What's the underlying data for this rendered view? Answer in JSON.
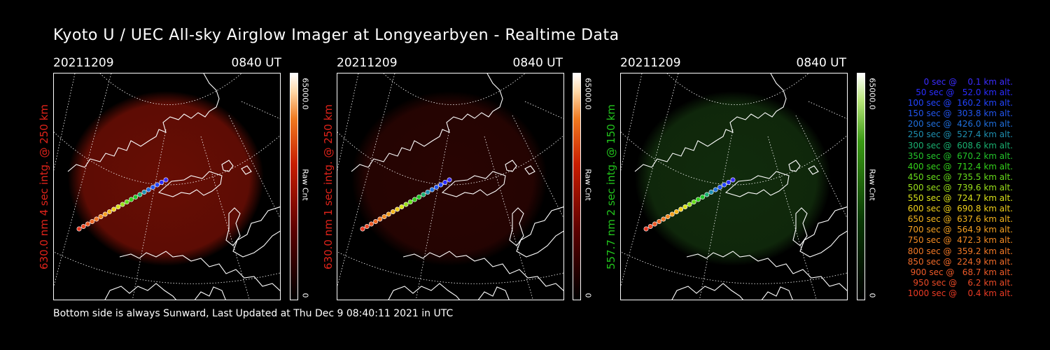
{
  "title": "Kyoto U / UEC All-sky Airglow Imager at Longyearbyen - Realtime Data",
  "footer": "Bottom side is always Sunward, Last Updated at Thu Dec  9 08:40:11 2021 in UTC",
  "panels": [
    {
      "date": "20211209",
      "time": "0840 UT",
      "label": "630.0 nm 4 sec intg. @ 250 km",
      "label_color": "#e0231a",
      "cbar_max": "65000.0",
      "cbar_unit": "Raw Cnt",
      "cbar_min": "0",
      "glow": "#8a1206",
      "glow_opacity": 0.75,
      "cmap": "red"
    },
    {
      "date": "20211209",
      "time": "0840 UT",
      "label": "630.0 nm 1 sec intg. @ 250 km",
      "label_color": "#e0231a",
      "cbar_max": "65000.0",
      "cbar_unit": "Raw Cnt",
      "cbar_min": "0",
      "glow": "#3a0603",
      "glow_opacity": 0.7,
      "cmap": "red"
    },
    {
      "date": "20211209",
      "time": "0840 UT",
      "label": "557.7 nm 2 sec intg. @ 150 km",
      "label_color": "#22c41c",
      "cbar_max": "65000.0",
      "cbar_unit": "Raw Cnt",
      "cbar_min": "0",
      "glow": "#15360f",
      "glow_opacity": 0.8,
      "cmap": "green"
    }
  ],
  "altitude_table": [
    {
      "text": "   0 sec @    0.1 km alt.",
      "color": "#3b2cff"
    },
    {
      "text": "  50 sec @   52.0 km alt.",
      "color": "#2a2cff"
    },
    {
      "text": " 100 sec @  160.2 km alt.",
      "color": "#2244ff"
    },
    {
      "text": " 150 sec @  303.8 km alt.",
      "color": "#2255ee"
    },
    {
      "text": " 200 sec @  426.0 km alt.",
      "color": "#1f6fdd"
    },
    {
      "text": " 250 sec @  527.4 km alt.",
      "color": "#1e8fb0"
    },
    {
      "text": " 300 sec @  608.6 km alt.",
      "color": "#19b070"
    },
    {
      "text": " 350 sec @  670.2 km alt.",
      "color": "#22c52a"
    },
    {
      "text": " 400 sec @  712.4 km alt.",
      "color": "#33d21a"
    },
    {
      "text": " 450 sec @  735.5 km alt.",
      "color": "#66dd1a"
    },
    {
      "text": " 500 sec @  739.6 km alt.",
      "color": "#99e01a"
    },
    {
      "text": " 550 sec @  724.7 km alt.",
      "color": "#d8e21a"
    },
    {
      "text": " 600 sec @  690.8 km alt.",
      "color": "#f0d01a"
    },
    {
      "text": " 650 sec @  637.6 km alt.",
      "color": "#f3b41c"
    },
    {
      "text": " 700 sec @  564.9 km alt.",
      "color": "#f5a020"
    },
    {
      "text": " 750 sec @  472.3 km alt.",
      "color": "#f48a22"
    },
    {
      "text": " 800 sec @  359.2 km alt.",
      "color": "#f27826"
    },
    {
      "text": " 850 sec @  224.9 km alt.",
      "color": "#f06a28"
    },
    {
      "text": " 900 sec @   68.7 km alt.",
      "color": "#ee5a28"
    },
    {
      "text": " 950 sec @    6.2 km alt.",
      "color": "#ec4a26"
    },
    {
      "text": "1000 sec @    0.4 km alt.",
      "color": "#ea3a24"
    }
  ]
}
